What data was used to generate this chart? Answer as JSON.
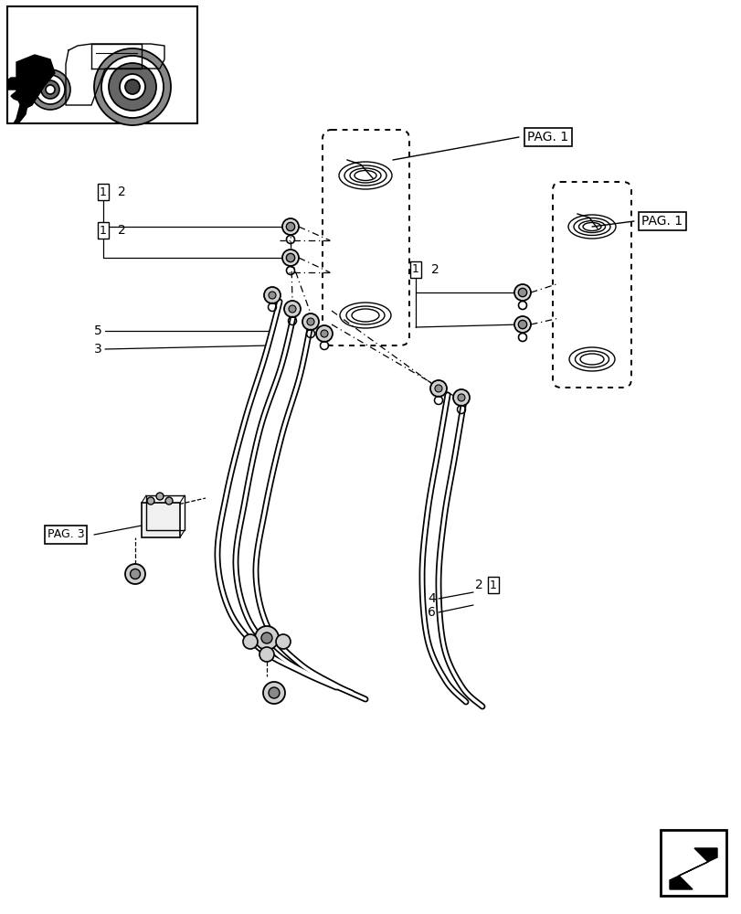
{
  "bg_color": "#ffffff",
  "line_color": "#000000",
  "fig_width": 8.12,
  "fig_height": 10.0,
  "dpi": 100,
  "pag1_top_label": "PAG. 1",
  "pag1_right_label": "PAG. 1",
  "pag3_label": "PAG. 3",
  "part_labels": {
    "label1_box": "1",
    "label1_text": "2",
    "label2_box": "1",
    "label2_text": "2",
    "label3_box": "1",
    "label3_text": "2",
    "label4_box": "1",
    "label4_text": "2",
    "num5": "5",
    "num3": "3",
    "num4": "4",
    "num6": "6"
  }
}
